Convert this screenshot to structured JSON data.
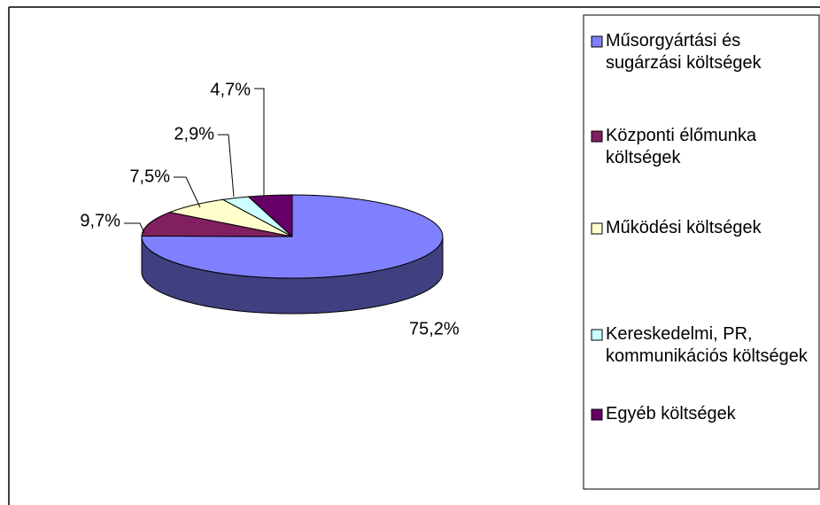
{
  "chart_data": {
    "type": "pie",
    "style": "3d",
    "categories": [
      "Műsorgyártási és sugárzási költségek",
      "Központi élőmunka költségek",
      "Működési költségek",
      "Kereskedelmi, PR, kommunikációs költségek",
      "Egyéb költségek"
    ],
    "values": [
      75.2,
      9.7,
      7.5,
      2.9,
      4.7
    ],
    "value_labels": [
      "75,2%",
      "9,7%",
      "7,5%",
      "2,9%",
      "4,7%"
    ],
    "colors": [
      "#8080ff",
      "#802060",
      "#ffffcc",
      "#ccffff",
      "#660066"
    ],
    "legend": "right"
  }
}
